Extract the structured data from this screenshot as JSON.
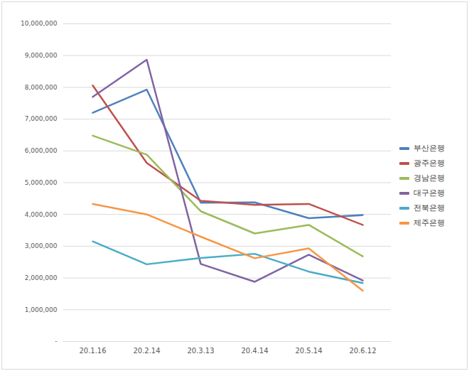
{
  "chart_data": {
    "type": "line",
    "categories": [
      "20.1.16",
      "20.2.14",
      "20.3.13",
      "20.4.14",
      "20.5.14",
      "20.6.12"
    ],
    "series": [
      {
        "name": "부산은행",
        "color": "#4f81bd",
        "values": [
          7200000,
          7930000,
          4370000,
          4380000,
          3880000,
          3980000
        ]
      },
      {
        "name": "광주은행",
        "color": "#c0504d",
        "values": [
          8060000,
          5620000,
          4430000,
          4300000,
          4330000,
          3670000
        ]
      },
      {
        "name": "경남은행",
        "color": "#9bbb59",
        "values": [
          6480000,
          5880000,
          4100000,
          3400000,
          3670000,
          2680000
        ]
      },
      {
        "name": "대구은행",
        "color": "#8064a2",
        "values": [
          7700000,
          8870000,
          2440000,
          1880000,
          2730000,
          1920000
        ]
      },
      {
        "name": "전북은행",
        "color": "#4bacc6",
        "values": [
          3150000,
          2430000,
          2630000,
          2760000,
          2200000,
          1840000
        ]
      },
      {
        "name": "제주은행",
        "color": "#f79646",
        "values": [
          4330000,
          4000000,
          3300000,
          2620000,
          2930000,
          1600000
        ]
      }
    ],
    "ylim": [
      0,
      10000000
    ],
    "yticks": [
      {
        "value": 0,
        "label": "-"
      },
      {
        "value": 1000000,
        "label": "1,000,000"
      },
      {
        "value": 2000000,
        "label": "2,000,000"
      },
      {
        "value": 3000000,
        "label": "3,000,000"
      },
      {
        "value": 4000000,
        "label": "4,000,000"
      },
      {
        "value": 5000000,
        "label": "5,000,000"
      },
      {
        "value": 6000000,
        "label": "6,000,000"
      },
      {
        "value": 7000000,
        "label": "7,000,000"
      },
      {
        "value": 8000000,
        "label": "8,000,000"
      },
      {
        "value": 9000000,
        "label": "9,000,000"
      },
      {
        "value": 10000000,
        "label": "10,000,000"
      }
    ],
    "grid": true,
    "legend": "right"
  }
}
